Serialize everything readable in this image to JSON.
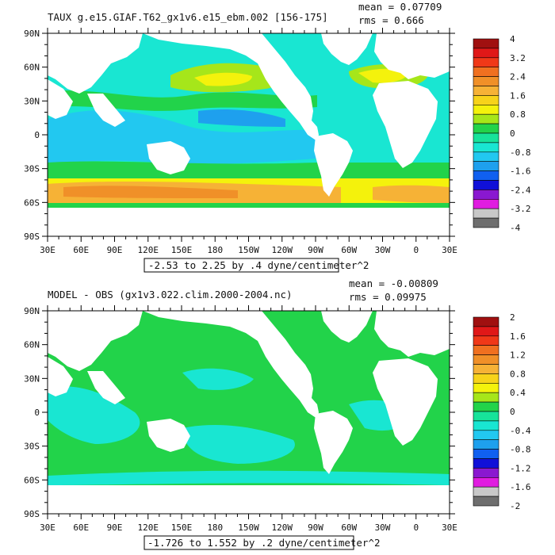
{
  "colors": {
    "ocean_bg": "#19e6d2",
    "land": "#ffffff",
    "frame": "#000000",
    "green": "#22d34a",
    "yellowgreen": "#a6e61a",
    "yellow": "#f5f20c",
    "orange_light": "#f8b133",
    "orange": "#f39028",
    "lightblue": "#22c8f0",
    "blue": "#1ea0ee"
  },
  "chart_data": [
    {
      "type": "heatmap",
      "title": "TAUX g.e15.GIAF.T62_gx1v6.e15_ebm.002 [156-175]",
      "stats": {
        "mean": "mean = 0.07709",
        "rms": "rms = 0.666"
      },
      "range_label": "-2.53 to 2.25 by .4 dyne/centimeter^2",
      "x_ticks": [
        "30E",
        "60E",
        "90E",
        "120E",
        "150E",
        "180",
        "150W",
        "120W",
        "90W",
        "60W",
        "30W",
        "0",
        "30E"
      ],
      "y_ticks": [
        "90N",
        "60N",
        "30N",
        "0",
        "30S",
        "60S",
        "90S"
      ],
      "colorbar": {
        "labels": [
          "4",
          "3.2",
          "2.4",
          "1.6",
          "0.8",
          "0",
          "-0.8",
          "-1.6",
          "-2.4",
          "-3.2",
          "-4"
        ],
        "colors": [
          "#a01010",
          "#e01818",
          "#f03818",
          "#f07020",
          "#f09028",
          "#f6b236",
          "#f7d31a",
          "#f4f20c",
          "#a6e61a",
          "#22d34a",
          "#17e39a",
          "#19e6d2",
          "#22c8f0",
          "#1ea0ee",
          "#1060f0",
          "#1010d8",
          "#8a18d0",
          "#e01ce0",
          "#c8c8c8",
          "#6e6e6e"
        ]
      }
    },
    {
      "type": "heatmap",
      "title": "MODEL - OBS (gx1v3.022.clim.2000-2004.nc)",
      "stats": {
        "mean": "mean = -0.00809",
        "rms": "rms = 0.09975"
      },
      "range_label": "-1.726 to 1.552 by .2 dyne/centimeter^2",
      "x_ticks": [
        "30E",
        "60E",
        "90E",
        "120E",
        "150E",
        "180",
        "150W",
        "120W",
        "90W",
        "60W",
        "30W",
        "0",
        "30E"
      ],
      "y_ticks": [
        "90N",
        "60N",
        "30N",
        "0",
        "30S",
        "60S",
        "90S"
      ],
      "colorbar": {
        "labels": [
          "2",
          "1.6",
          "1.2",
          "0.8",
          "0.4",
          "0",
          "-0.4",
          "-0.8",
          "-1.2",
          "-1.6",
          "-2"
        ],
        "colors": [
          "#a01010",
          "#e01818",
          "#f03818",
          "#f07020",
          "#f09028",
          "#f6b236",
          "#f7d31a",
          "#f4f20c",
          "#a6e61a",
          "#22d34a",
          "#17e39a",
          "#19e6d2",
          "#22c8f0",
          "#1ea0ee",
          "#1060f0",
          "#1010d8",
          "#8a18d0",
          "#e01ce0",
          "#c8c8c8",
          "#6e6e6e"
        ]
      }
    }
  ]
}
